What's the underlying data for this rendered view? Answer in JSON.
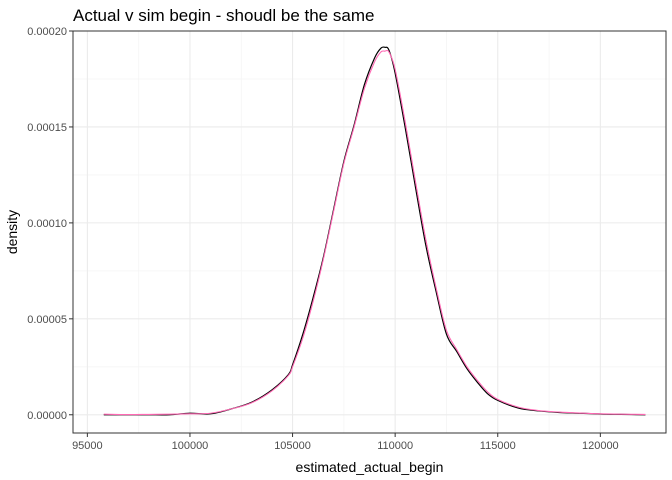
{
  "chart_data": {
    "type": "line",
    "title": "Actual v sim begin - shoudl be the same",
    "xlabel": "estimated_actual_begin",
    "ylabel": "density",
    "xlim": [
      94300,
      123200
    ],
    "ylim": [
      -9.5e-06,
      0.0002
    ],
    "grid": true,
    "x_ticks": [
      95000,
      100000,
      105000,
      110000,
      115000,
      120000
    ],
    "x_tick_labels": [
      "95000",
      "100000",
      "105000",
      "110000",
      "115000",
      "120000"
    ],
    "y_ticks": [
      0,
      5e-05,
      0.0001,
      0.00015,
      0.0002
    ],
    "y_tick_labels": [
      "0.00000",
      "0.00005",
      "0.00010",
      "0.00015",
      "0.00020"
    ],
    "colors": {
      "actual": "#000000",
      "sim": "#ff69b4",
      "grid_major": "#ebebeb",
      "grid_minor": "#f5f5f5",
      "panel_border": "#333333"
    },
    "series": [
      {
        "x": [
          95800,
          97000,
          98000,
          99000,
          100000,
          101000,
          102000,
          103000,
          104000,
          104800,
          105000,
          105500,
          106000,
          106500,
          107000,
          107500,
          108000,
          108500,
          109000,
          109300,
          109500,
          109700,
          110000,
          110500,
          111000,
          111500,
          112000,
          112500,
          113000,
          113500,
          114000,
          114500,
          115000,
          116000,
          117000,
          118000,
          119000,
          120000,
          121000,
          122200
        ],
        "y": [
          0.0,
          0.0,
          0.0,
          0.0,
          8e-07,
          5e-07,
          3e-06,
          6.5e-06,
          1.3e-05,
          2.1e-05,
          2.6e-05,
          4.2e-05,
          6.1e-05,
          8.2e-05,
          0.000107,
          0.000132,
          0.000151,
          0.000172,
          0.000186,
          0.000191,
          0.0001915,
          0.00019,
          0.000178,
          0.000149,
          0.000118,
          8.8e-05,
          6.4e-05,
          4.2e-05,
          3.3e-05,
          2.4e-05,
          1.7e-05,
          1.1e-05,
          7.5e-06,
          3.5e-06,
          2e-06,
          1.2e-06,
          8e-07,
          4e-07,
          2e-07,
          0.0
        ]
      },
      {
        "x": [
          95800,
          97000,
          98000,
          99000,
          100000,
          101000,
          102000,
          103000,
          104000,
          104800,
          105000,
          105500,
          106000,
          106500,
          107000,
          107500,
          108000,
          108500,
          109000,
          109300,
          109500,
          109700,
          110000,
          110500,
          111000,
          111500,
          112000,
          112500,
          113000,
          113500,
          114000,
          114500,
          115000,
          116000,
          117000,
          118000,
          119000,
          120000,
          121000,
          122200
        ],
        "y": [
          3e-07,
          1e-07,
          2e-07,
          3e-07,
          5e-07,
          8e-07,
          3e-06,
          6.2e-06,
          1.25e-05,
          2.05e-05,
          2.5e-05,
          4e-05,
          5.9e-05,
          8.1e-05,
          0.000106,
          0.000131,
          0.00015,
          0.00017,
          0.000184,
          0.000189,
          0.0001895,
          0.000189,
          0.00018,
          0.000152,
          0.000121,
          9.1e-05,
          6.6e-05,
          4.4e-05,
          3.4e-05,
          2.5e-05,
          1.8e-05,
          1.2e-05,
          8e-06,
          4e-06,
          2.2e-06,
          1.4e-06,
          9e-07,
          5e-07,
          3e-07,
          2e-07
        ]
      }
    ]
  }
}
